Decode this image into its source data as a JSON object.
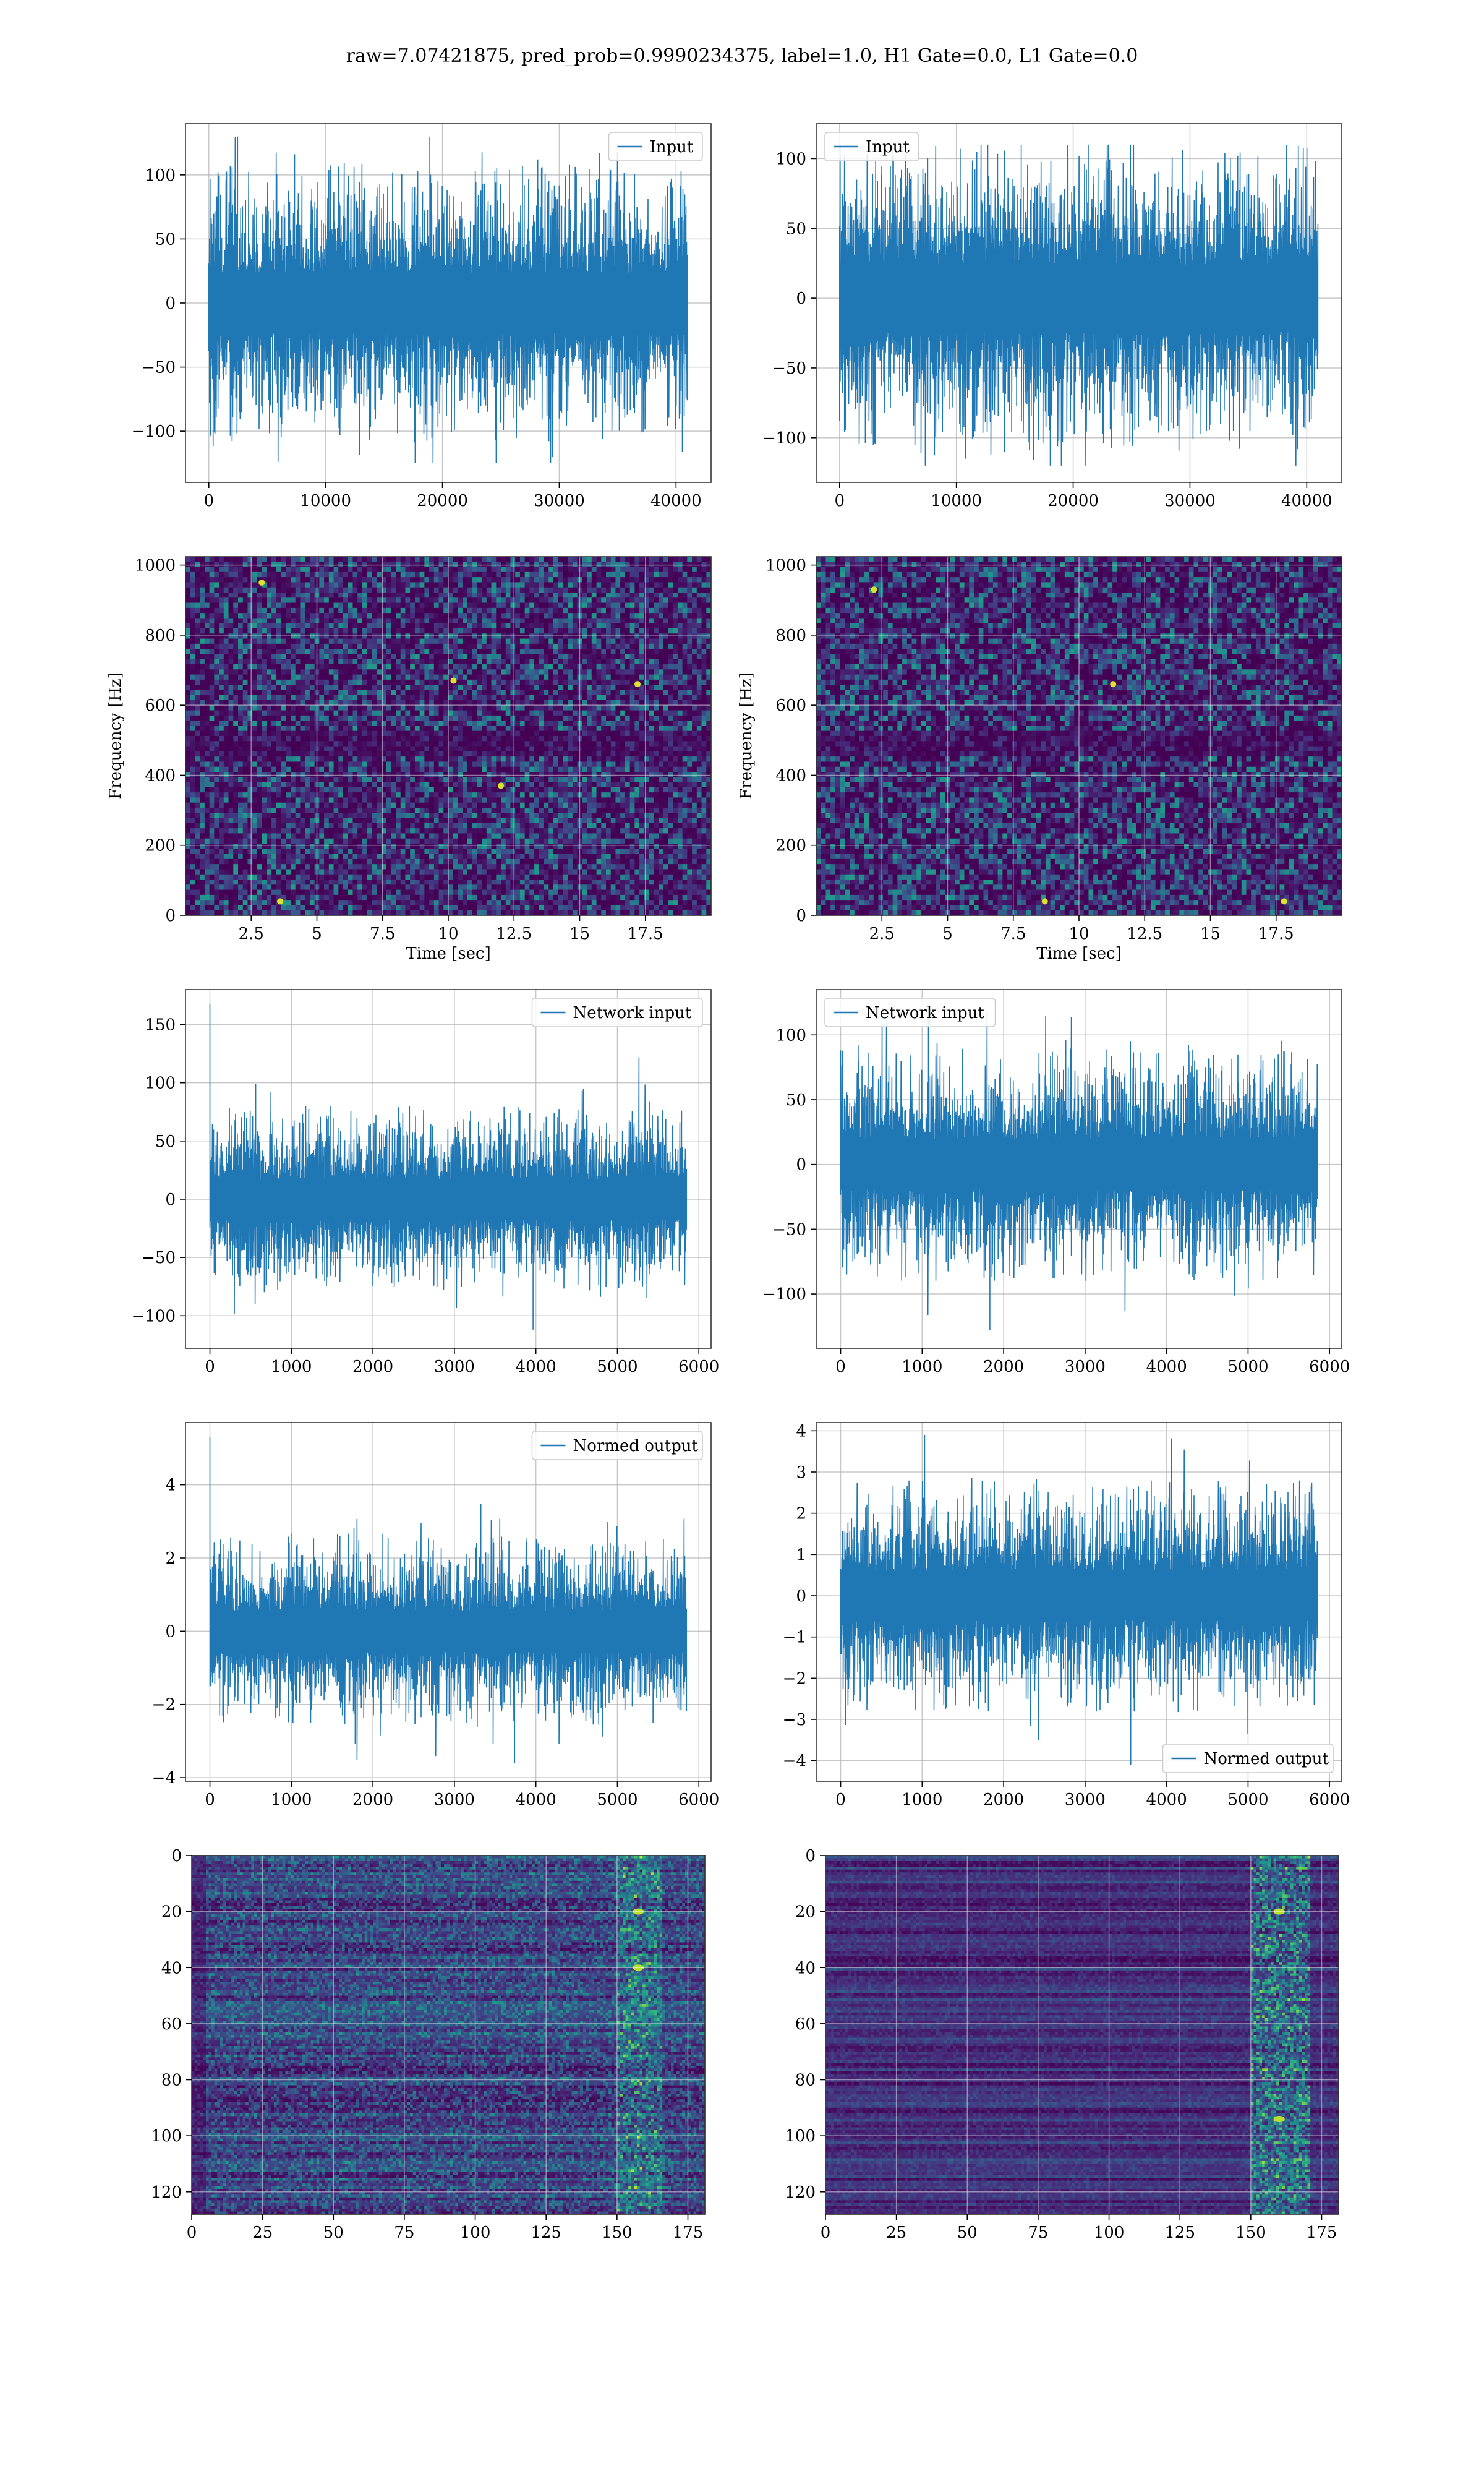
{
  "figure": {
    "title": "raw=7.07421875, pred_prob=0.9990234375, label=1.0, H1 Gate=0.0, L1 Gate=0.0"
  },
  "colors": {
    "line": "#1f77b4",
    "grid": "#b0b0b0",
    "axes_edge": "#000000",
    "colormap": "viridis"
  },
  "chart_data": [
    {
      "id": "ts-input-h1",
      "type": "line",
      "legend_loc": "upper right",
      "series": [
        {
          "name": "Input",
          "n_points": 40960,
          "envelope": {
            "typical": [
              -55,
              55
            ],
            "min": -125,
            "max": 130
          }
        }
      ],
      "xlim": [
        -2000,
        43000
      ],
      "ylim": [
        -140,
        140
      ],
      "xticks": [
        0,
        10000,
        20000,
        30000,
        40000
      ],
      "yticks": [
        -100,
        -50,
        0,
        50,
        100
      ],
      "xlabel": "",
      "ylabel": "",
      "grid": true
    },
    {
      "id": "ts-input-l1",
      "type": "line",
      "legend_loc": "upper left",
      "series": [
        {
          "name": "Input",
          "n_points": 40960,
          "envelope": {
            "typical": [
              -55,
              55
            ],
            "min": -120,
            "max": 110
          }
        }
      ],
      "xlim": [
        -2000,
        43000
      ],
      "ylim": [
        -132,
        125
      ],
      "xticks": [
        0,
        10000,
        20000,
        30000,
        40000
      ],
      "yticks": [
        -100,
        -50,
        0,
        50,
        100
      ],
      "xlabel": "",
      "ylabel": "",
      "grid": true
    },
    {
      "id": "spec-h1",
      "type": "heatmap",
      "colormap": "viridis",
      "xlim": [
        0,
        20
      ],
      "ylim": [
        0,
        1024
      ],
      "xticks": [
        2.5,
        5.0,
        7.5,
        10.0,
        12.5,
        15.0,
        17.5
      ],
      "yticks": [
        0,
        200,
        400,
        600,
        800,
        1000
      ],
      "xlabel": "Time [sec]",
      "ylabel": "Frequency [Hz]",
      "grid": true,
      "hot_spots": [
        [
          2.9,
          950
        ],
        [
          10.2,
          670
        ],
        [
          17.2,
          660
        ],
        [
          3.6,
          40
        ],
        [
          12.0,
          370
        ]
      ]
    },
    {
      "id": "spec-l1",
      "type": "heatmap",
      "colormap": "viridis",
      "xlim": [
        0,
        20
      ],
      "ylim": [
        0,
        1024
      ],
      "xticks": [
        2.5,
        5.0,
        7.5,
        10.0,
        12.5,
        15.0,
        17.5
      ],
      "yticks": [
        0,
        200,
        400,
        600,
        800,
        1000
      ],
      "xlabel": "Time [sec]",
      "ylabel": "Frequency [Hz]",
      "grid": true,
      "hot_spots": [
        [
          11.3,
          660
        ],
        [
          17.8,
          40
        ],
        [
          8.7,
          40
        ],
        [
          2.2,
          930
        ]
      ]
    },
    {
      "id": "ts-network-h1",
      "type": "line",
      "legend_loc": "upper right",
      "series": [
        {
          "name": "Network input",
          "n_points": 5850,
          "envelope": {
            "typical": [
              -40,
              40
            ],
            "min": -112,
            "max": 168
          }
        }
      ],
      "xlim": [
        -300,
        6150
      ],
      "ylim": [
        -128,
        180
      ],
      "xticks": [
        0,
        1000,
        2000,
        3000,
        4000,
        5000,
        6000
      ],
      "yticks": [
        -100,
        -50,
        0,
        50,
        100,
        150
      ],
      "xlabel": "",
      "ylabel": "",
      "grid": true
    },
    {
      "id": "ts-network-l1",
      "type": "line",
      "legend_loc": "upper left",
      "series": [
        {
          "name": "Network input",
          "n_points": 5850,
          "envelope": {
            "typical": [
              -45,
              45
            ],
            "min": -128,
            "max": 122
          }
        }
      ],
      "xlim": [
        -300,
        6150
      ],
      "ylim": [
        -142,
        135
      ],
      "xticks": [
        0,
        1000,
        2000,
        3000,
        4000,
        5000,
        6000
      ],
      "yticks": [
        -100,
        -50,
        0,
        50,
        100
      ],
      "xlabel": "",
      "ylabel": "",
      "grid": true
    },
    {
      "id": "ts-normed-h1",
      "type": "line",
      "legend_loc": "upper right",
      "series": [
        {
          "name": "Normed output",
          "n_points": 5850,
          "envelope": {
            "typical": [
              -1.3,
              1.3
            ],
            "min": -3.6,
            "max": 5.3
          }
        }
      ],
      "xlim": [
        -300,
        6150
      ],
      "ylim": [
        -4.1,
        5.7
      ],
      "xticks": [
        0,
        1000,
        2000,
        3000,
        4000,
        5000,
        6000
      ],
      "yticks": [
        -4,
        -2,
        0,
        2,
        4
      ],
      "xlabel": "",
      "ylabel": "",
      "grid": true
    },
    {
      "id": "ts-normed-l1",
      "type": "line",
      "legend_loc": "lower right",
      "series": [
        {
          "name": "Normed output",
          "n_points": 5850,
          "envelope": {
            "typical": [
              -1.4,
              1.4
            ],
            "min": -4.1,
            "max": 3.9
          }
        }
      ],
      "xlim": [
        -300,
        6150
      ],
      "ylim": [
        -4.5,
        4.2
      ],
      "xticks": [
        0,
        1000,
        2000,
        3000,
        4000,
        5000,
        6000
      ],
      "yticks": [
        -4,
        -3,
        -2,
        -1,
        0,
        1,
        2,
        3,
        4
      ],
      "xlabel": "",
      "ylabel": "",
      "grid": true
    },
    {
      "id": "feat-h1",
      "type": "heatmap",
      "colormap": "viridis",
      "xlim": [
        0,
        181
      ],
      "ylim": [
        128,
        0
      ],
      "xticks": [
        0,
        25,
        50,
        75,
        100,
        125,
        150,
        175
      ],
      "yticks": [
        0,
        20,
        40,
        60,
        80,
        100,
        120
      ],
      "xlabel": "",
      "ylabel": "",
      "grid": true,
      "bright_column_range": [
        150,
        165
      ],
      "bright_rows": [
        20,
        40
      ]
    },
    {
      "id": "feat-l1",
      "type": "heatmap",
      "colormap": "viridis",
      "xlim": [
        0,
        181
      ],
      "ylim": [
        128,
        0
      ],
      "xticks": [
        0,
        25,
        50,
        75,
        100,
        125,
        150,
        175
      ],
      "yticks": [
        0,
        20,
        40,
        60,
        80,
        100,
        120
      ],
      "xlabel": "",
      "ylabel": "",
      "grid": true,
      "bright_column_range": [
        150,
        170
      ],
      "bright_rows": [
        20,
        94
      ]
    }
  ]
}
